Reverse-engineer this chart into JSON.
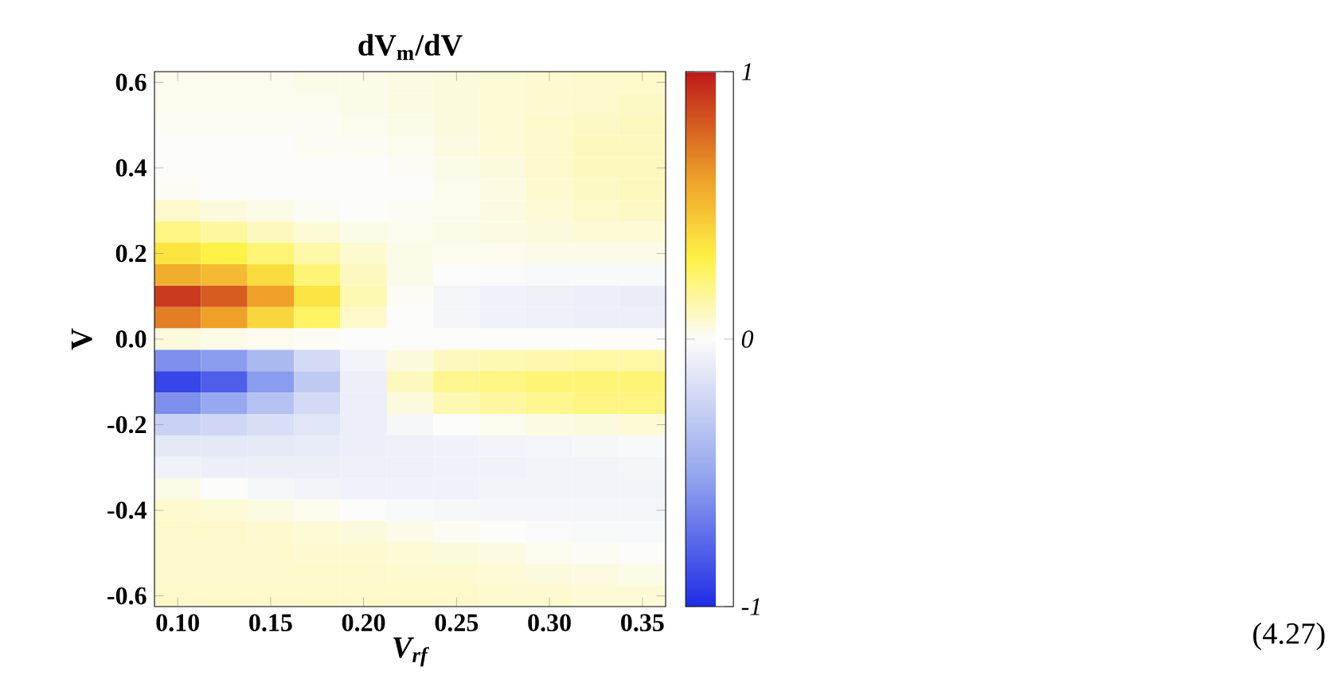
{
  "chart_data": {
    "type": "heatmap",
    "title": "dV$_{m}$/dV",
    "xlabel": "V$_{rf}$",
    "ylabel": "V",
    "categories": [
      "0.10",
      null,
      "0.15",
      null,
      "0.20",
      null,
      "0.25",
      null,
      "0.30",
      null,
      "0.35"
    ],
    "y_categories": [
      "0.6",
      null,
      null,
      null,
      "0.4",
      null,
      null,
      null,
      "0.2",
      null,
      null,
      null,
      "0.0",
      null,
      null,
      null,
      "-0.2",
      null,
      null,
      null,
      "-0.4",
      null,
      null,
      null,
      "-0.6"
    ],
    "clim": [
      -1,
      1
    ],
    "cticks": [
      -1,
      0,
      1
    ],
    "annotations": [
      "(4.27)"
    ],
    "cells": [
      [
        0.02,
        0.02,
        0.02,
        0.03,
        0.03,
        0.04,
        0.05,
        0.06,
        0.07,
        0.08,
        0.08
      ],
      [
        0.02,
        0.02,
        0.02,
        0.02,
        0.03,
        0.04,
        0.05,
        0.06,
        0.07,
        0.08,
        0.09
      ],
      [
        0.01,
        0.01,
        0.01,
        0.01,
        0.02,
        0.03,
        0.05,
        0.06,
        0.08,
        0.09,
        0.1
      ],
      [
        0,
        0,
        0,
        0.01,
        0.01,
        0.02,
        0.04,
        0.06,
        0.08,
        0.1,
        0.1
      ],
      [
        0,
        0,
        0,
        0,
        0,
        0.01,
        0.03,
        0.05,
        0.08,
        0.1,
        0.1
      ],
      [
        0.01,
        0,
        0,
        0,
        0,
        0,
        0.02,
        0.04,
        0.07,
        0.09,
        0.1
      ],
      [
        0.08,
        0.05,
        0.03,
        0.01,
        0,
        0.01,
        0.02,
        0.04,
        0.06,
        0.08,
        0.09
      ],
      [
        0.2,
        0.15,
        0.1,
        0.06,
        0.03,
        0.02,
        0.03,
        0.04,
        0.05,
        0.06,
        0.06
      ],
      [
        0.35,
        0.3,
        0.22,
        0.14,
        0.07,
        0.03,
        0.02,
        0.02,
        0.03,
        0.03,
        0.03
      ],
      [
        0.55,
        0.5,
        0.38,
        0.22,
        0.1,
        0.03,
        0,
        -0.01,
        -0.02,
        -0.02,
        -0.02
      ],
      [
        0.9,
        0.8,
        0.6,
        0.35,
        0.12,
        0.01,
        -0.04,
        -0.06,
        -0.07,
        -0.08,
        -0.09
      ],
      [
        0.7,
        0.6,
        0.4,
        0.25,
        0.08,
        0,
        -0.04,
        -0.06,
        -0.07,
        -0.08,
        -0.08
      ],
      [
        0.05,
        0.03,
        0.02,
        0.01,
        0,
        0,
        0,
        0,
        0,
        0,
        0
      ],
      [
        -0.6,
        -0.55,
        -0.4,
        -0.2,
        -0.05,
        0.05,
        0.1,
        0.12,
        0.13,
        0.14,
        0.14
      ],
      [
        -0.9,
        -0.8,
        -0.55,
        -0.3,
        -0.08,
        0.1,
        0.18,
        0.2,
        0.22,
        0.22,
        0.22
      ],
      [
        -0.6,
        -0.5,
        -0.35,
        -0.2,
        -0.08,
        0.05,
        0.12,
        0.15,
        0.18,
        0.2,
        0.2
      ],
      [
        -0.25,
        -0.22,
        -0.18,
        -0.13,
        -0.08,
        -0.03,
        0,
        0.02,
        0.04,
        0.05,
        0.06
      ],
      [
        -0.12,
        -0.12,
        -0.11,
        -0.1,
        -0.08,
        -0.07,
        -0.06,
        -0.05,
        -0.04,
        -0.03,
        -0.02
      ],
      [
        -0.06,
        -0.08,
        -0.08,
        -0.08,
        -0.07,
        -0.07,
        -0.06,
        -0.06,
        -0.05,
        -0.05,
        -0.04
      ],
      [
        0.03,
        0,
        -0.03,
        -0.05,
        -0.06,
        -0.06,
        -0.06,
        -0.05,
        -0.05,
        -0.05,
        -0.05
      ],
      [
        0.07,
        0.06,
        0.04,
        0.02,
        0,
        -0.02,
        -0.03,
        -0.04,
        -0.04,
        -0.04,
        -0.04
      ],
      [
        0.08,
        0.08,
        0.07,
        0.06,
        0.05,
        0.03,
        0.01,
        0,
        -0.01,
        -0.02,
        -0.02
      ],
      [
        0.08,
        0.08,
        0.08,
        0.07,
        0.07,
        0.06,
        0.05,
        0.04,
        0.02,
        0.01,
        0
      ],
      [
        0.08,
        0.08,
        0.08,
        0.08,
        0.08,
        0.07,
        0.07,
        0.06,
        0.05,
        0.04,
        0.03
      ],
      [
        0.08,
        0.08,
        0.08,
        0.08,
        0.08,
        0.08,
        0.08,
        0.07,
        0.07,
        0.06,
        0.06
      ]
    ]
  }
}
